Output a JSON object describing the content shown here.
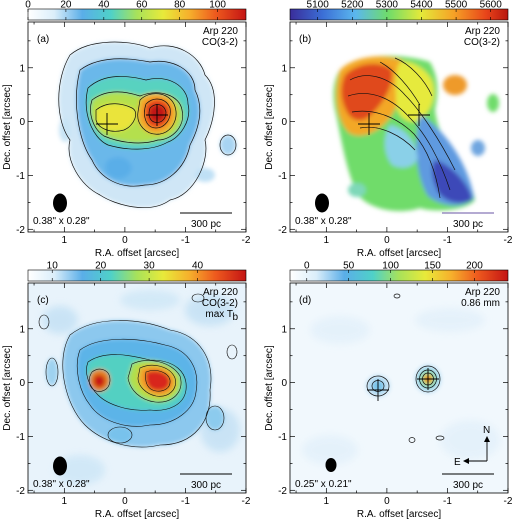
{
  "figure": {
    "xlabel": "R.A. offset [arcsec]",
    "ylabel": "Dec. offset [arcsec]",
    "panels": [
      {
        "letter": "(a)",
        "title_lines": [
          "Arp 220",
          "CO(3-2)"
        ],
        "colorbar_ticks": [
          "0",
          "20",
          "40",
          "60",
          "80",
          "100"
        ],
        "colorbar_range": [
          0,
          115
        ],
        "beam_text": "0.38\" x 0.28\"",
        "scalebar_text": "300 pc",
        "x_ticks": [
          "1",
          "0",
          "-1",
          "-2"
        ],
        "y_ticks": [
          "1",
          "0",
          "-1",
          "-2"
        ],
        "colormap": "rainbow",
        "scalebar_color": "#000000"
      },
      {
        "letter": "(b)",
        "title_lines": [
          "Arp 220",
          "CO(3-2)"
        ],
        "colorbar_ticks": [
          "5100",
          "5200",
          "5300",
          "5400",
          "5500",
          "5600"
        ],
        "colorbar_range": [
          5020,
          5650
        ],
        "beam_text": "0.38\" x 0.28\"",
        "scalebar_text": "300 pc",
        "x_ticks": [
          "1",
          "0",
          "-1",
          "-2"
        ],
        "y_ticks": [
          "1",
          "0",
          "-1",
          "-2"
        ],
        "colormap": "velocity",
        "scalebar_color": "#8878b8"
      },
      {
        "letter": "(c)",
        "title_lines": [
          "Arp 220",
          "CO(3-2)",
          "max T"
        ],
        "title_subscript": "b",
        "colorbar_ticks": [
          "10",
          "20",
          "30",
          "40"
        ],
        "colorbar_range": [
          5,
          50
        ],
        "beam_text": "0.38\" x 0.28\"",
        "scalebar_text": "300 pc",
        "x_ticks": [
          "1",
          "0",
          "-1",
          "-2"
        ],
        "y_ticks": [
          "1",
          "0",
          "-1",
          "-2"
        ],
        "colormap": "rainbow",
        "scalebar_color": "#000000"
      },
      {
        "letter": "(d)",
        "title_lines": [
          "Arp 220",
          "0.86 mm"
        ],
        "colorbar_ticks": [
          "0",
          "50",
          "100",
          "150",
          "200"
        ],
        "colorbar_range": [
          -20,
          240
        ],
        "beam_text": "0.25\" x 0.21\"",
        "scalebar_text": "300 pc",
        "compass_n": "N",
        "compass_e": "E",
        "x_ticks": [
          "1",
          "0",
          "-1",
          "-2"
        ],
        "y_ticks": [
          "1",
          "0",
          "-1",
          "-2"
        ],
        "colormap": "rainbow",
        "scalebar_color": "#000000"
      }
    ]
  }
}
